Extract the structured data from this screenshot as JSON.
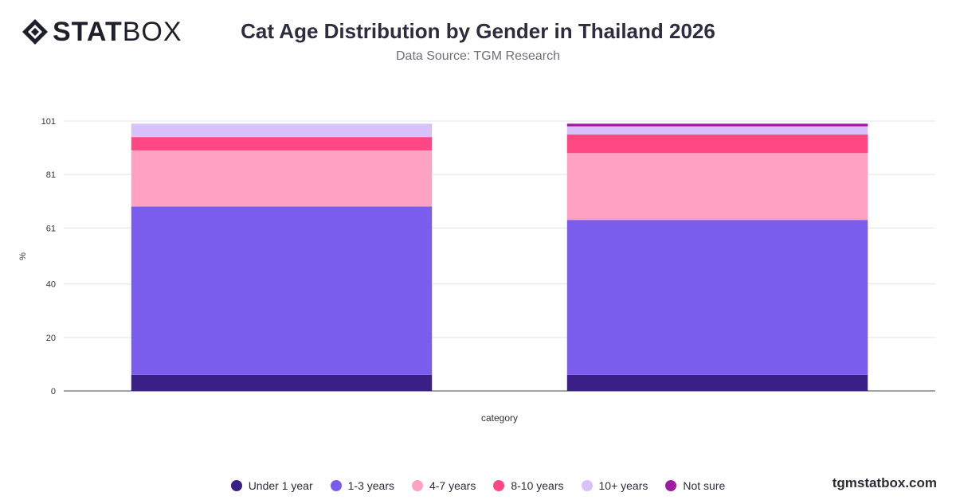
{
  "brand": {
    "logo_strong": "STAT",
    "logo_light": "BOX",
    "footer": "tgmstatbox.com"
  },
  "header": {
    "title": "Cat Age Distribution by Gender in Thailand 2026",
    "subtitle": "Data Source: TGM Research"
  },
  "chart_data": {
    "type": "bar",
    "stacked": true,
    "title": "Cat Age Distribution by Gender in Thailand 2026",
    "subtitle": "Data Source: TGM Research",
    "xlabel": "category",
    "ylabel": "%",
    "ylim": [
      0,
      101
    ],
    "yticks": [
      "0",
      "20",
      "40",
      "61",
      "81",
      "101"
    ],
    "grid": true,
    "legend_position": "bottom",
    "categories": [
      "",
      ""
    ],
    "series": [
      {
        "name": "Under 1 year",
        "color": "#3a1f86",
        "values": [
          6,
          6
        ]
      },
      {
        "name": "1-3 years",
        "color": "#7b5ded",
        "values": [
          63,
          58
        ]
      },
      {
        "name": "4-7 years",
        "color": "#ffa1c2",
        "values": [
          21,
          25
        ]
      },
      {
        "name": "8-10 years",
        "color": "#ff4784",
        "values": [
          5,
          7
        ]
      },
      {
        "name": "10+ years",
        "color": "#d9c2fb",
        "values": [
          5,
          3
        ]
      },
      {
        "name": "Not sure",
        "color": "#a21aa1",
        "values": [
          0,
          1
        ]
      }
    ]
  }
}
